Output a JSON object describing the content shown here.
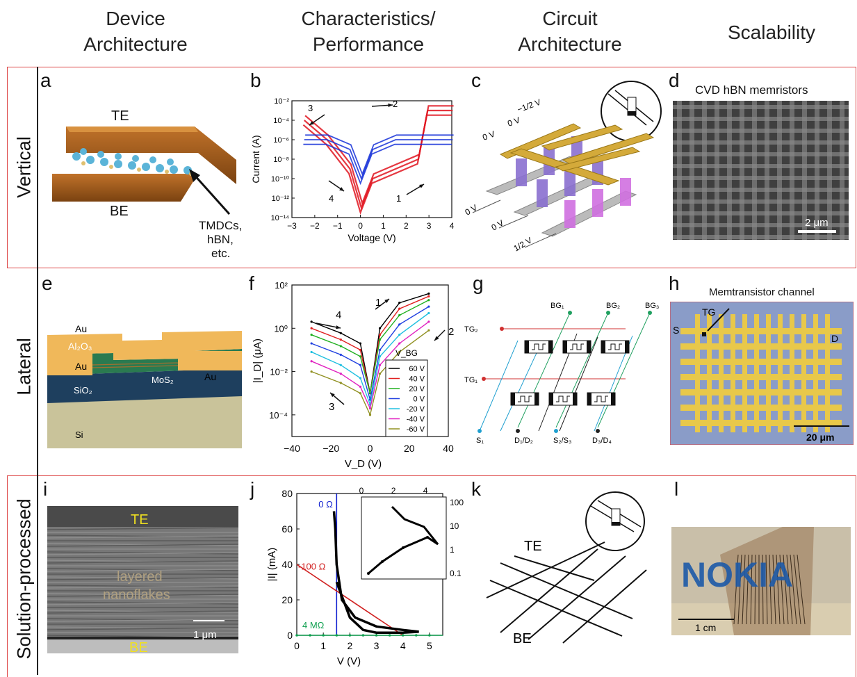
{
  "headers": {
    "device": "Device\nArchitecture",
    "characteristics": "Characteristics/\nPerformance",
    "circuit": "Circuit\nArchitecture",
    "scalability": "Scalability"
  },
  "rows": {
    "vertical": "Vertical",
    "lateral": "Lateral",
    "solution": "Solution-processed"
  },
  "letters": [
    "a",
    "b",
    "c",
    "d",
    "e",
    "f",
    "g",
    "h",
    "i",
    "j",
    "k",
    "l"
  ],
  "panel_a": {
    "te": "TE",
    "be": "BE",
    "annot": "TMDCs,\nhBN,\netc."
  },
  "panel_b": {
    "ylabel": "Current (A)",
    "xlabel": "Voltage (V)",
    "yticks": [
      "10⁻²",
      "10⁻⁴",
      "10⁻⁶",
      "10⁻⁸",
      "10⁻¹⁰",
      "10⁻¹²",
      "10⁻¹⁴"
    ],
    "xticks": [
      "−3",
      "−2",
      "−1",
      "0",
      "1",
      "2",
      "3",
      "4"
    ],
    "arrows": [
      "1",
      "2",
      "3",
      "4"
    ]
  },
  "panel_c": {
    "v1": "−1/2 V",
    "v2": "0 V",
    "v3": "0 V",
    "v4": "0 V",
    "v5": "0 V",
    "v6": "1/2 V"
  },
  "panel_d": {
    "title": "CVD hBN memristors",
    "scale": "2 μm"
  },
  "panel_e": {
    "au1": "Au",
    "al2o3": "Al₂O₃",
    "au2": "Au",
    "au3": "Au",
    "mos2": "MoS₂",
    "sio2": "SiO₂",
    "si": "Si"
  },
  "panel_f": {
    "ylabel": "|I_D| (μA)",
    "xlabel": "V_D (V)",
    "yticks": [
      "10²",
      "10⁰",
      "10⁻²",
      "10⁻⁴"
    ],
    "xticks": [
      "−40",
      "−20",
      "0",
      "20",
      "40"
    ],
    "legend_title": "V_BG",
    "legend": [
      "60 V",
      "40 V",
      "20 V",
      "0 V",
      "-20 V",
      "-40 V",
      "-60 V"
    ],
    "arrows": [
      "1",
      "2",
      "3",
      "4"
    ]
  },
  "panel_g": {
    "bg1": "BG₁",
    "bg2": "BG₂",
    "bg3": "BG₃",
    "tg2": "TG₂",
    "tg1": "TG₁",
    "s1": "S₁",
    "d12": "D₁/D₂",
    "s23": "S₂/S₃",
    "d34": "D₃/D₄"
  },
  "panel_h": {
    "title": "Memtransistor channel",
    "tg": "TG",
    "s": "S",
    "d": "D",
    "scale": "20 μm"
  },
  "panel_i": {
    "te": "TE",
    "mid": "layered\nnanoflakes",
    "be": "BE",
    "scale": "1 μm"
  },
  "panel_j": {
    "ylabel": "|I| (mA)",
    "xlabel": "V (V)",
    "yticks": [
      "0",
      "20",
      "40",
      "60",
      "80"
    ],
    "xticks": [
      "0",
      "1",
      "2",
      "3",
      "4",
      "5"
    ],
    "inset_xticks": [
      "0",
      "2",
      "4"
    ],
    "inset_yticks": [
      "100",
      "10",
      "1",
      "0.1"
    ],
    "r0": "0 Ω",
    "r100": "-100 Ω",
    "r4m": "4 MΩ"
  },
  "panel_k": {
    "te": "TE",
    "be": "BE"
  },
  "panel_l": {
    "logo": "NOKIA",
    "scale": "1 cm"
  },
  "chart_data": [
    {
      "type": "line",
      "title": "",
      "xlabel": "Voltage (V)",
      "ylabel": "Current (A)",
      "xlim": [
        -3,
        4
      ],
      "ylim_log10": [
        -14,
        -2
      ],
      "series": [
        {
          "x": [
            -2.5,
            -1.5,
            -0.5,
            0,
            0.5,
            1.5,
            2.5,
            2.9,
            3.5,
            4
          ],
          "y": [
            0.0001,
            1e-06,
            1e-09,
            1e-13,
            1e-10,
            1e-09,
            1e-08,
            0.001,
            0.001,
            0.001
          ]
        },
        {
          "x": [
            -2.5,
            -1.5,
            -0.5,
            0,
            0.5,
            1.5,
            2.5,
            2.9,
            3.5,
            4
          ],
          "y": [
            1e-06,
            1e-06,
            1e-07,
            1e-10,
            1e-07,
            1e-06,
            1e-06,
            1e-06,
            1e-06,
            1e-06
          ]
        }
      ],
      "colors": [
        "#e0141e",
        "#1530d8"
      ]
    },
    {
      "type": "line",
      "xlabel": "V_D (V)",
      "ylabel": "|I_D| (μA)",
      "xlim": [
        -40,
        40
      ],
      "ylim_log10": [
        -5,
        2
      ],
      "series": [
        {
          "name": "60 V",
          "x": [
            -30,
            -15,
            -5,
            0,
            5,
            15,
            30
          ],
          "y": [
            2.0,
            0.6,
            0.2,
            0.001,
            1.0,
            15,
            40
          ]
        },
        {
          "name": "40 V",
          "x": [
            -30,
            -15,
            -5,
            0,
            5,
            15,
            30
          ],
          "y": [
            1.0,
            0.3,
            0.1,
            0.001,
            0.5,
            8,
            30
          ]
        },
        {
          "name": "20 V",
          "x": [
            -30,
            -15,
            -5,
            0,
            5,
            15,
            30
          ],
          "y": [
            0.5,
            0.15,
            0.05,
            0.001,
            0.3,
            4,
            20
          ]
        },
        {
          "name": "0 V",
          "x": [
            -30,
            -15,
            -5,
            0,
            5,
            15,
            30
          ],
          "y": [
            0.2,
            0.06,
            0.02,
            0.0005,
            0.1,
            1.5,
            10
          ]
        },
        {
          "name": "-20 V",
          "x": [
            -30,
            -15,
            -5,
            0,
            5,
            15,
            30
          ],
          "y": [
            0.08,
            0.02,
            0.005,
            0.0003,
            0.05,
            0.5,
            5
          ]
        },
        {
          "name": "-40 V",
          "x": [
            -30,
            -15,
            -5,
            0,
            5,
            15,
            30
          ],
          "y": [
            0.03,
            0.008,
            0.002,
            0.0002,
            0.02,
            0.2,
            2
          ]
        },
        {
          "name": "-60 V",
          "x": [
            -30,
            -15,
            -5,
            0,
            5,
            15,
            30
          ],
          "y": [
            0.01,
            0.003,
            0.001,
            0.0001,
            0.008,
            0.08,
            0.8
          ]
        }
      ],
      "colors": [
        "#000000",
        "#e02020",
        "#20b020",
        "#2040e0",
        "#20c0e0",
        "#e020c0",
        "#909020"
      ]
    },
    {
      "type": "line",
      "xlabel": "V (V)",
      "ylabel": "|I| (mA)",
      "xlim": [
        0,
        5.5
      ],
      "ylim": [
        0,
        80
      ],
      "series": [
        {
          "name": "0 Ω",
          "x": [
            1.5,
            1.5
          ],
          "y": [
            0,
            80
          ]
        },
        {
          "name": "-100 Ω",
          "x": [
            0,
            4
          ],
          "y": [
            40,
            0
          ]
        },
        {
          "name": "4 MΩ",
          "x": [
            0,
            5.5
          ],
          "y": [
            0,
            0
          ]
        },
        {
          "x": [
            1.4,
            1.45,
            1.5,
            1.7,
            2.2,
            3.0,
            4.0,
            4.6,
            4.0,
            3.0,
            2.5,
            2.0,
            1.5
          ],
          "y": [
            70,
            60,
            40,
            20,
            10,
            5,
            3,
            2,
            1.5,
            1.5,
            3,
            10,
            30
          ]
        }
      ],
      "colors": [
        "#1020d0",
        "#d02020",
        "#10a050",
        "#000000"
      ]
    }
  ]
}
